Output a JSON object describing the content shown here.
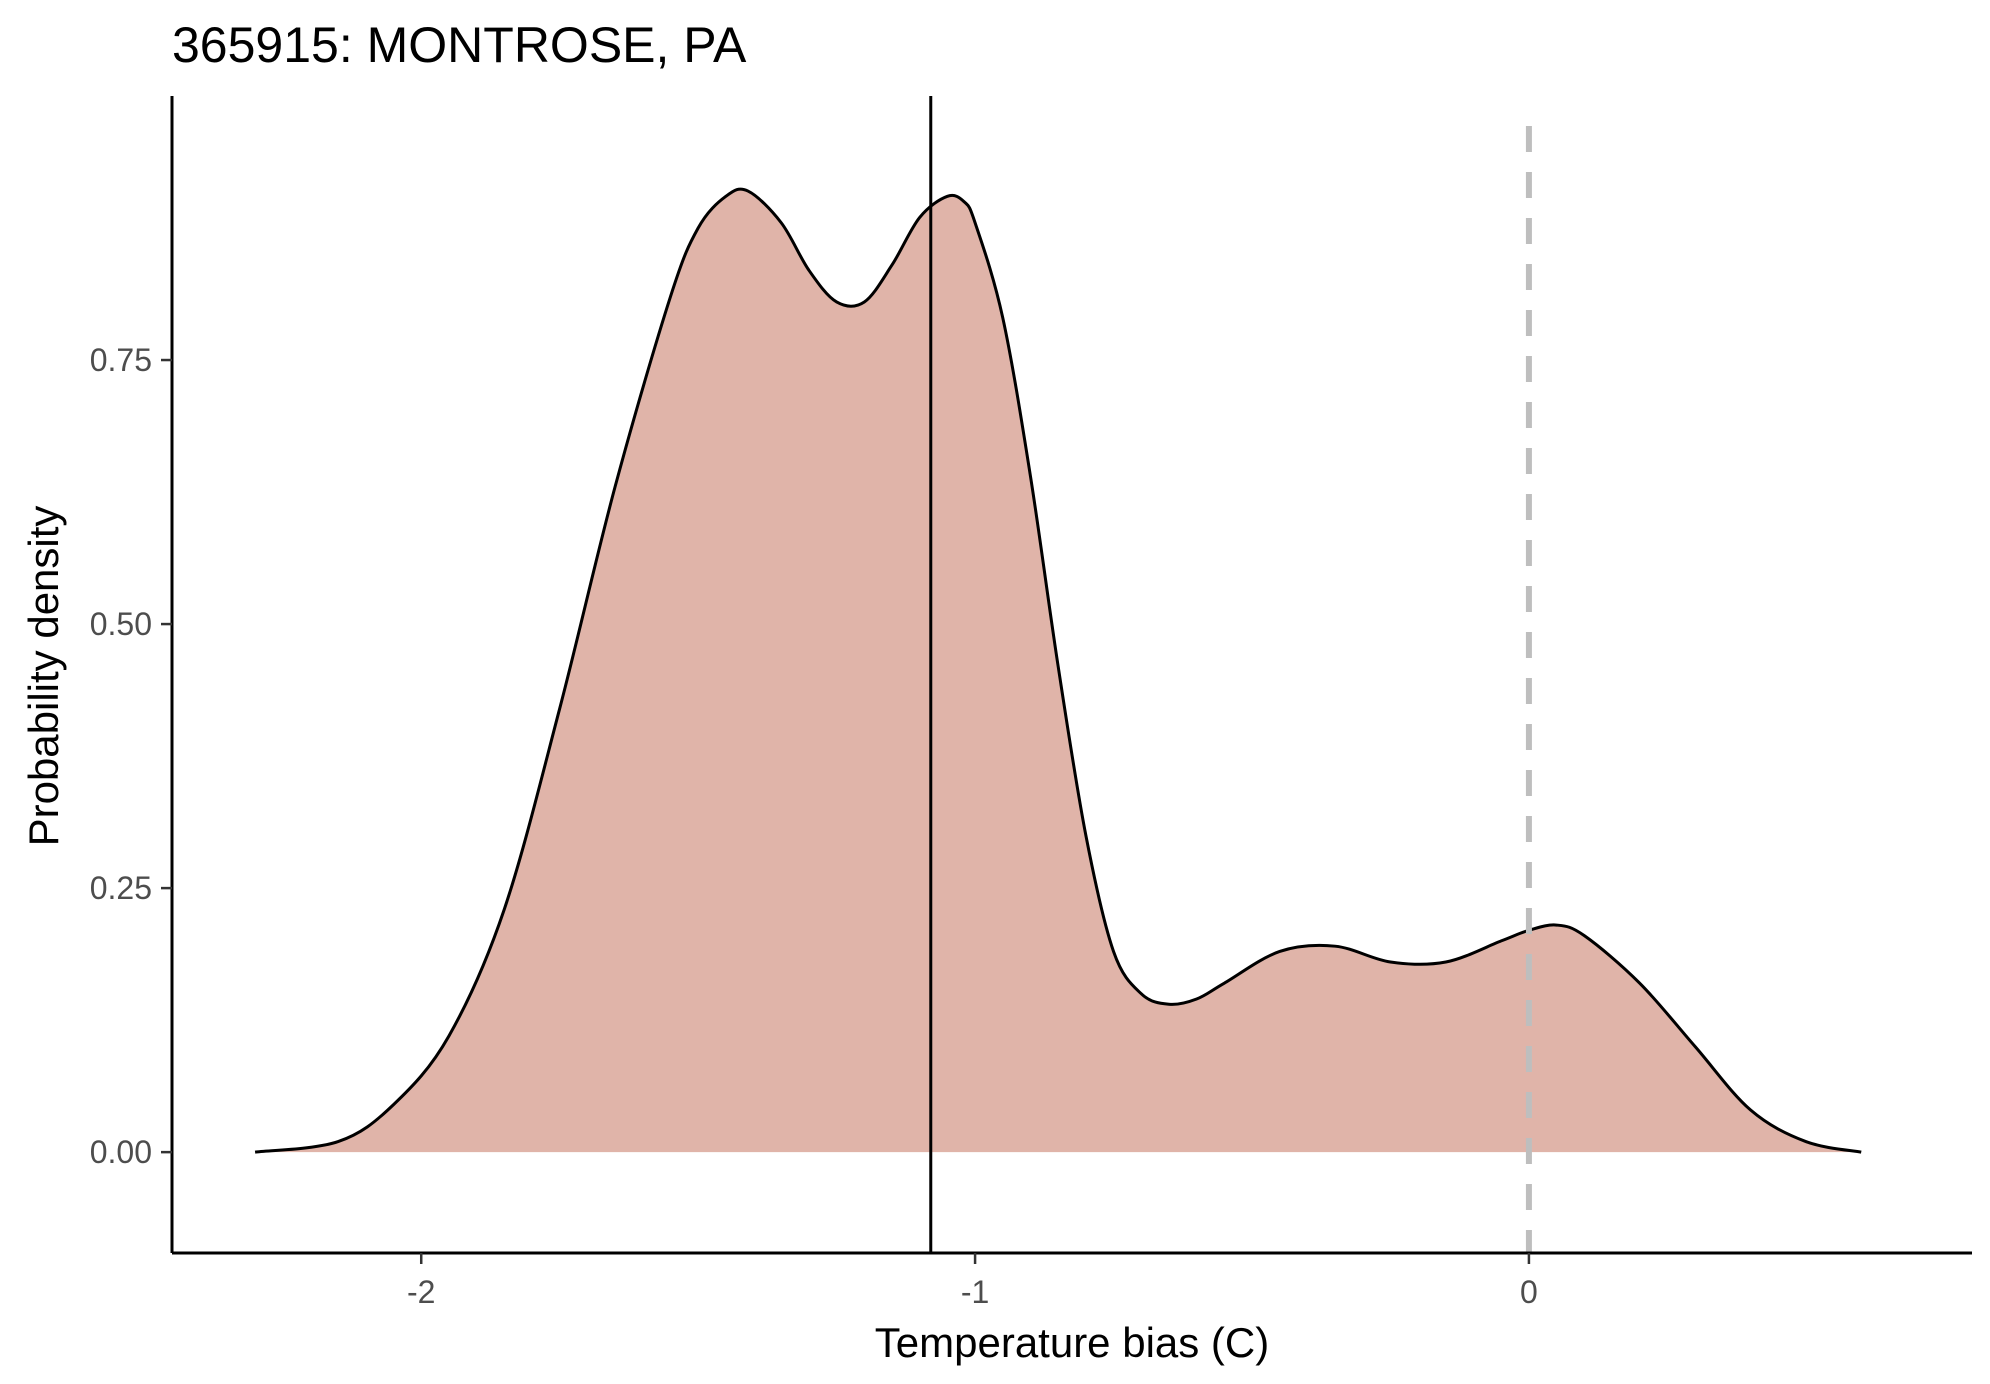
{
  "chart_data": {
    "type": "area",
    "title": "365915: MONTROSE, PA",
    "xlabel": "Temperature bias (C)",
    "ylabel": "Probability density",
    "xlim": [
      -2.45,
      0.8
    ],
    "ylim": [
      -0.0955,
      1.0
    ],
    "x_ticks": [
      -2,
      -1,
      0
    ],
    "x_tick_labels": [
      "-2",
      "-1",
      "0"
    ],
    "y_ticks": [
      0,
      0.25,
      0.5,
      0.75
    ],
    "y_tick_labels": [
      "0.00",
      "0.25",
      "0.50",
      "0.75"
    ],
    "grid": false,
    "fill_color": "#e0b4a9",
    "line_color": "#000000",
    "series": [
      {
        "x": [
          -2.3,
          -2.15,
          -2.05,
          -1.95,
          -1.85,
          -1.75,
          -1.65,
          -1.55,
          -1.5,
          -1.45,
          -1.41,
          -1.35,
          -1.3,
          -1.25,
          -1.2,
          -1.15,
          -1.1,
          -1.05,
          -1.02,
          -1.0,
          -0.95,
          -0.9,
          -0.85,
          -0.8,
          -0.75,
          -0.7,
          -0.65,
          -0.6,
          -0.55,
          -0.45,
          -0.35,
          -0.25,
          -0.15,
          -0.05,
          0.0,
          0.05,
          0.1,
          0.2,
          0.3,
          0.4,
          0.5,
          0.6
        ],
        "values": [
          0.0,
          0.01,
          0.045,
          0.11,
          0.23,
          0.42,
          0.63,
          0.81,
          0.875,
          0.905,
          0.91,
          0.88,
          0.835,
          0.805,
          0.805,
          0.84,
          0.885,
          0.905,
          0.9,
          0.88,
          0.79,
          0.64,
          0.46,
          0.3,
          0.19,
          0.15,
          0.14,
          0.145,
          0.16,
          0.19,
          0.195,
          0.18,
          0.18,
          0.2,
          0.21,
          0.215,
          0.205,
          0.16,
          0.1,
          0.04,
          0.01,
          0.0
        ]
      }
    ],
    "annotations": [
      {
        "type": "vline",
        "x": -1.08,
        "style": "solid",
        "color": "#000000"
      },
      {
        "type": "vline",
        "x": 0.0,
        "style": "dashed",
        "color": "#bebebe"
      }
    ]
  }
}
